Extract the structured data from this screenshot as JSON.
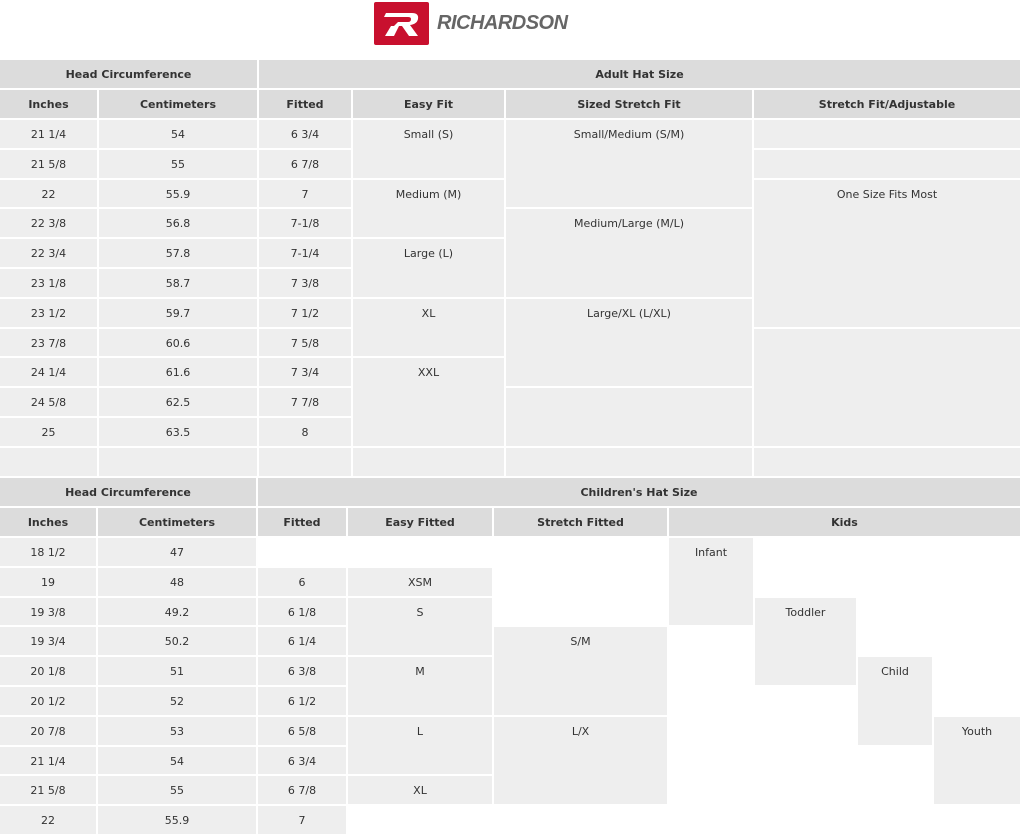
{
  "logo": {
    "brand": "RICHARDSON",
    "color": "#c8102e"
  },
  "colors": {
    "header": "#dcdcdc",
    "cell": "#eeeeee"
  },
  "adult": {
    "cells": [
      {
        "text": "Head Circumference",
        "r": 1,
        "c": 1,
        "cs": 2,
        "h": true
      },
      {
        "text": "Adult Hat Size",
        "r": 1,
        "c": 3,
        "cs": 4,
        "h": true
      },
      {
        "text": "Inches",
        "r": 2,
        "c": 1,
        "h": true
      },
      {
        "text": "Centimeters",
        "r": 2,
        "c": 2,
        "h": true
      },
      {
        "text": "Fitted",
        "r": 2,
        "c": 3,
        "h": true
      },
      {
        "text": "Easy Fit",
        "r": 2,
        "c": 4,
        "h": true
      },
      {
        "text": "Sized Stretch Fit",
        "r": 2,
        "c": 5,
        "h": true
      },
      {
        "text": "Stretch Fit/Adjustable",
        "r": 2,
        "c": 6,
        "h": true
      },
      {
        "text": "21 1/4",
        "r": 3,
        "c": 1
      },
      {
        "text": "54",
        "r": 3,
        "c": 2
      },
      {
        "text": "6 3/4",
        "r": 3,
        "c": 3
      },
      {
        "text": "21 5/8",
        "r": 4,
        "c": 1
      },
      {
        "text": "55",
        "r": 4,
        "c": 2
      },
      {
        "text": "6 7/8",
        "r": 4,
        "c": 3
      },
      {
        "text": "22",
        "r": 5,
        "c": 1
      },
      {
        "text": "55.9",
        "r": 5,
        "c": 2
      },
      {
        "text": "7",
        "r": 5,
        "c": 3
      },
      {
        "text": "22 3/8",
        "r": 6,
        "c": 1
      },
      {
        "text": "56.8",
        "r": 6,
        "c": 2
      },
      {
        "text": "7-1/8",
        "r": 6,
        "c": 3
      },
      {
        "text": "22 3/4",
        "r": 7,
        "c": 1
      },
      {
        "text": "57.8",
        "r": 7,
        "c": 2
      },
      {
        "text": "7-1/4",
        "r": 7,
        "c": 3
      },
      {
        "text": "23 1/8",
        "r": 8,
        "c": 1
      },
      {
        "text": "58.7",
        "r": 8,
        "c": 2
      },
      {
        "text": "7 3/8",
        "r": 8,
        "c": 3
      },
      {
        "text": "23 1/2",
        "r": 9,
        "c": 1
      },
      {
        "text": "59.7",
        "r": 9,
        "c": 2
      },
      {
        "text": "7 1/2",
        "r": 9,
        "c": 3
      },
      {
        "text": "23 7/8",
        "r": 10,
        "c": 1
      },
      {
        "text": "60.6",
        "r": 10,
        "c": 2
      },
      {
        "text": "7 5/8",
        "r": 10,
        "c": 3
      },
      {
        "text": "24 1/4",
        "r": 11,
        "c": 1
      },
      {
        "text": "61.6",
        "r": 11,
        "c": 2
      },
      {
        "text": "7 3/4",
        "r": 11,
        "c": 3
      },
      {
        "text": "24 5/8",
        "r": 12,
        "c": 1
      },
      {
        "text": "62.5",
        "r": 12,
        "c": 2
      },
      {
        "text": "7 7/8",
        "r": 12,
        "c": 3
      },
      {
        "text": "25",
        "r": 13,
        "c": 1
      },
      {
        "text": "63.5",
        "r": 13,
        "c": 2
      },
      {
        "text": "8",
        "r": 13,
        "c": 3
      },
      {
        "text": "",
        "r": 14,
        "c": 1
      },
      {
        "text": "",
        "r": 14,
        "c": 2
      },
      {
        "text": "",
        "r": 14,
        "c": 3
      },
      {
        "text": "Small (S)",
        "r": 3,
        "c": 4,
        "rs": 2
      },
      {
        "text": "Medium (M)",
        "r": 5,
        "c": 4,
        "rs": 2
      },
      {
        "text": "Large (L)",
        "r": 7,
        "c": 4,
        "rs": 2
      },
      {
        "text": "XL",
        "r": 9,
        "c": 4,
        "rs": 2
      },
      {
        "text": "XXL",
        "r": 11,
        "c": 4,
        "rs": 3
      },
      {
        "text": "",
        "r": 14,
        "c": 4
      },
      {
        "text": "Small/Medium (S/M)",
        "r": 3,
        "c": 5,
        "rs": 3
      },
      {
        "text": "Medium/Large (M/L)",
        "r": 6,
        "c": 5,
        "rs": 3
      },
      {
        "text": "Large/XL (L/XL)",
        "r": 9,
        "c": 5,
        "rs": 3
      },
      {
        "text": "",
        "r": 12,
        "c": 5,
        "rs": 2
      },
      {
        "text": "",
        "r": 14,
        "c": 5
      },
      {
        "text": "",
        "r": 3,
        "c": 6
      },
      {
        "text": "",
        "r": 4,
        "c": 6
      },
      {
        "text": "One Size Fits Most",
        "r": 5,
        "c": 6,
        "rs": 5
      },
      {
        "text": "",
        "r": 10,
        "c": 6,
        "rs": 4
      },
      {
        "text": "",
        "r": 14,
        "c": 6
      }
    ]
  },
  "children": {
    "cells": [
      {
        "text": "Head Circumference",
        "r": 1,
        "c": 1,
        "cs": 2,
        "h": true
      },
      {
        "text": "Children's Hat Size",
        "r": 1,
        "c": 3,
        "cs": 7,
        "h": true
      },
      {
        "text": "Inches",
        "r": 2,
        "c": 1,
        "h": true
      },
      {
        "text": "Centimeters",
        "r": 2,
        "c": 2,
        "h": true
      },
      {
        "text": "Fitted",
        "r": 2,
        "c": 3,
        "h": true
      },
      {
        "text": "Easy Fitted",
        "r": 2,
        "c": 4,
        "h": true
      },
      {
        "text": "Stretch Fitted",
        "r": 2,
        "c": 5,
        "h": true
      },
      {
        "text": "Kids",
        "r": 2,
        "c": 6,
        "cs": 4,
        "h": true
      },
      {
        "text": "18 1/2",
        "r": 3,
        "c": 1
      },
      {
        "text": "47",
        "r": 3,
        "c": 2
      },
      {
        "text": "19",
        "r": 4,
        "c": 1
      },
      {
        "text": "48",
        "r": 4,
        "c": 2
      },
      {
        "text": "6",
        "r": 4,
        "c": 3
      },
      {
        "text": "19 3/8",
        "r": 5,
        "c": 1
      },
      {
        "text": "49.2",
        "r": 5,
        "c": 2
      },
      {
        "text": "6 1/8",
        "r": 5,
        "c": 3
      },
      {
        "text": "19 3/4",
        "r": 6,
        "c": 1
      },
      {
        "text": "50.2",
        "r": 6,
        "c": 2
      },
      {
        "text": "6 1/4",
        "r": 6,
        "c": 3
      },
      {
        "text": "20 1/8",
        "r": 7,
        "c": 1
      },
      {
        "text": "51",
        "r": 7,
        "c": 2
      },
      {
        "text": "6 3/8",
        "r": 7,
        "c": 3
      },
      {
        "text": "20 1/2",
        "r": 8,
        "c": 1
      },
      {
        "text": "52",
        "r": 8,
        "c": 2
      },
      {
        "text": "6 1/2",
        "r": 8,
        "c": 3
      },
      {
        "text": "20 7/8",
        "r": 9,
        "c": 1
      },
      {
        "text": "53",
        "r": 9,
        "c": 2
      },
      {
        "text": "6 5/8",
        "r": 9,
        "c": 3
      },
      {
        "text": "21 1/4",
        "r": 10,
        "c": 1
      },
      {
        "text": "54",
        "r": 10,
        "c": 2
      },
      {
        "text": "6 3/4",
        "r": 10,
        "c": 3
      },
      {
        "text": "21 5/8",
        "r": 11,
        "c": 1
      },
      {
        "text": "55",
        "r": 11,
        "c": 2
      },
      {
        "text": "6 7/8",
        "r": 11,
        "c": 3
      },
      {
        "text": "22",
        "r": 12,
        "c": 1
      },
      {
        "text": "55.9",
        "r": 12,
        "c": 2
      },
      {
        "text": "7",
        "r": 12,
        "c": 3
      },
      {
        "text": "XSM",
        "r": 4,
        "c": 4
      },
      {
        "text": "S",
        "r": 5,
        "c": 4,
        "rs": 2
      },
      {
        "text": "M",
        "r": 7,
        "c": 4,
        "rs": 2
      },
      {
        "text": "L",
        "r": 9,
        "c": 4,
        "rs": 2
      },
      {
        "text": "XL",
        "r": 11,
        "c": 4
      },
      {
        "text": "S/M",
        "r": 6,
        "c": 5,
        "rs": 3
      },
      {
        "text": "L/X",
        "r": 9,
        "c": 5,
        "rs": 3
      },
      {
        "text": "Infant",
        "r": 3,
        "c": 6,
        "rs": 3
      },
      {
        "text": "Toddler",
        "r": 5,
        "c": 7,
        "rs": 3
      },
      {
        "text": "Child",
        "r": 7,
        "c": 8,
        "rs": 3
      },
      {
        "text": "Youth",
        "r": 9,
        "c": 9,
        "rs": 3
      }
    ]
  }
}
